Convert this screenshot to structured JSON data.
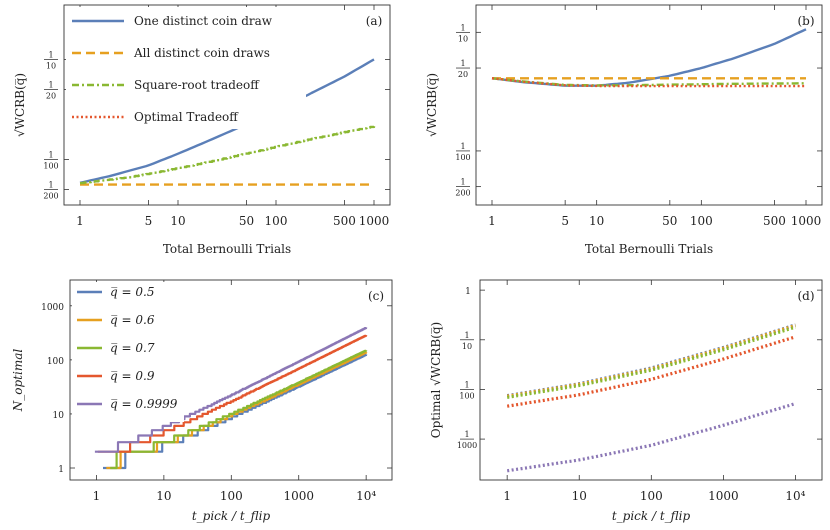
{
  "colors": {
    "blue": "#5b7fb8",
    "orange": "#e6a020",
    "green": "#8ab832",
    "red": "#e4572e",
    "purple": "#8b77b5"
  },
  "chart_data": [
    {
      "id": "a",
      "type": "line",
      "panel_label": "(a)",
      "xlabel": "Total Bernoulli Trials",
      "ylabel": "√WCRB(q̅)",
      "xscale": "log",
      "yscale": "log",
      "xlim": [
        1,
        1000
      ],
      "ylim": [
        0.0035,
        0.35
      ],
      "xticks": [
        1,
        5,
        10,
        50,
        100,
        500,
        1000
      ],
      "xtick_labels": [
        "1",
        "5",
        "10",
        "50",
        "100",
        "500",
        "1000"
      ],
      "yticks": [
        {
          "value": 0.1,
          "num": "1",
          "den": "10"
        },
        {
          "value": 0.05,
          "num": "1",
          "den": "20"
        },
        {
          "value": 0.01,
          "num": "1",
          "den": "100"
        },
        {
          "value": 0.005,
          "num": "1",
          "den": "200"
        }
      ],
      "legend": "top-left",
      "series": [
        {
          "name": "One distinct coin draw",
          "color": "#5b7fb8",
          "dash": "solid",
          "x": [
            1,
            2,
            5,
            10,
            20,
            50,
            100,
            200,
            500,
            1000
          ],
          "y": [
            0.00583,
            0.0068,
            0.0087,
            0.0114,
            0.0152,
            0.0225,
            0.031,
            0.043,
            0.0675,
            0.1
          ]
        },
        {
          "name": "All distinct coin draws",
          "color": "#e6a020",
          "dash": "dashed",
          "x": [
            1,
            1000
          ],
          "y": [
            0.0056,
            0.0056
          ]
        },
        {
          "name": "Square-root tradeoff",
          "color": "#8ab832",
          "dash": "dotdash",
          "x": [
            1,
            2,
            3,
            5,
            10,
            20,
            50,
            100,
            200,
            500,
            1000
          ],
          "y": [
            0.0058,
            0.0063,
            0.0066,
            0.0072,
            0.0082,
            0.0094,
            0.0115,
            0.0134,
            0.0156,
            0.0188,
            0.0215
          ]
        },
        {
          "name": "Optimal Tradeoff",
          "color": "#e4572e",
          "dash": "dotted",
          "x": [],
          "y": []
        }
      ]
    },
    {
      "id": "b",
      "type": "line",
      "panel_label": "(b)",
      "xlabel": "Total Bernoulli Trials",
      "ylabel": "√WCRB(q̅)",
      "xscale": "log",
      "yscale": "log",
      "xlim": [
        1,
        1000
      ],
      "ylim": [
        0.0035,
        0.17
      ],
      "xticks": [
        1,
        5,
        10,
        50,
        100,
        500,
        1000
      ],
      "xtick_labels": [
        "1",
        "5",
        "10",
        "50",
        "100",
        "500",
        "1000"
      ],
      "yticks": [
        {
          "value": 0.1,
          "num": "1",
          "den": "10"
        },
        {
          "value": 0.05,
          "num": "1",
          "den": "20"
        },
        {
          "value": 0.01,
          "num": "1",
          "den": "100"
        },
        {
          "value": 0.005,
          "num": "1",
          "den": "200"
        }
      ],
      "series": [
        {
          "name": "One distinct coin draw",
          "color": "#5b7fb8",
          "dash": "solid",
          "x": [
            1,
            2,
            5,
            10,
            20,
            50,
            100,
            200,
            500,
            1000
          ],
          "y": [
            0.041,
            0.038,
            0.0355,
            0.0355,
            0.0375,
            0.043,
            0.05,
            0.06,
            0.08,
            0.106
          ]
        },
        {
          "name": "All distinct coin draws",
          "color": "#e6a020",
          "dash": "dashed",
          "x": [
            1,
            1000
          ],
          "y": [
            0.041,
            0.041
          ]
        },
        {
          "name": "Square-root tradeoff",
          "color": "#8ab832",
          "dash": "dotdash",
          "x": [
            1,
            2,
            5,
            10,
            20,
            50,
            100,
            200,
            500,
            1000
          ],
          "y": [
            0.041,
            0.0385,
            0.036,
            0.0357,
            0.0358,
            0.0362,
            0.0365,
            0.0368,
            0.037,
            0.0372
          ]
        },
        {
          "name": "Optimal Tradeoff",
          "color": "#e4572e",
          "dash": "dotted",
          "x": [
            1,
            2,
            5,
            10,
            20,
            50,
            100,
            200,
            500,
            1000
          ],
          "y": [
            0.041,
            0.0383,
            0.0357,
            0.0353,
            0.0352,
            0.0352,
            0.0352,
            0.0352,
            0.0352,
            0.0352
          ]
        }
      ]
    },
    {
      "id": "c",
      "type": "line",
      "panel_label": "(c)",
      "xlabel": "t_pick / t_flip",
      "ylabel": "N_optimal",
      "xscale": "log",
      "yscale": "log",
      "xlim": [
        0.7,
        14000
      ],
      "ylim": [
        0.6,
        3000
      ],
      "xticks": [
        1,
        10,
        100,
        1000,
        10000
      ],
      "xtick_labels": [
        "1",
        "10",
        "100",
        "1000",
        "10⁴"
      ],
      "yticks": [
        1,
        10,
        100,
        1000
      ],
      "ytick_labels": [
        "1",
        "10",
        "100",
        "1000"
      ],
      "legend": "top-left",
      "series": [
        {
          "name": "q̅ = 0.5",
          "color": "#5b7fb8",
          "k": 0.5,
          "p": 0.6,
          "x0": 1.25
        },
        {
          "name": "q̅ = 0.6",
          "color": "#e6a020",
          "k": 0.55,
          "p": 0.6,
          "x0": 1.4
        },
        {
          "name": "q̅ = 0.7",
          "color": "#8ab832",
          "k": 0.6,
          "p": 0.6,
          "x0": 1.6
        },
        {
          "name": "q̅ = 0.9",
          "color": "#e4572e",
          "k": 0.95,
          "p": 0.62,
          "x0": 1.05
        },
        {
          "name": "q̅ = 0.9999",
          "color": "#8b77b5",
          "k": 1.2,
          "p": 0.63,
          "x0": 0.95
        }
      ]
    },
    {
      "id": "d",
      "type": "line",
      "panel_label": "(d)",
      "xlabel": "t_pick / t_flip",
      "ylabel": "Optimal √WCRB(q̅)",
      "xscale": "log",
      "yscale": "log",
      "xlim": [
        0.7,
        14000
      ],
      "ylim": [
        0.00015,
        1.6
      ],
      "xticks": [
        1,
        10,
        100,
        1000,
        10000
      ],
      "xtick_labels": [
        "1",
        "10",
        "100",
        "1000",
        "10⁴"
      ],
      "yticks": [
        {
          "value": 1,
          "num": "1",
          "den": ""
        },
        {
          "value": 0.1,
          "num": "1",
          "den": "10"
        },
        {
          "value": 0.01,
          "num": "1",
          "den": "100"
        },
        {
          "value": 0.001,
          "num": "1",
          "den": "1000"
        }
      ],
      "series": [
        {
          "name": "q̅ = 0.5",
          "color": "#5b7fb8",
          "x": [
            1,
            10,
            100,
            1000,
            10000
          ],
          "y": [
            0.0075,
            0.013,
            0.027,
            0.07,
            0.2
          ]
        },
        {
          "name": "q̅ = 0.6",
          "color": "#e6a020",
          "x": [
            1,
            10,
            100,
            1000,
            10000
          ],
          "y": [
            0.0073,
            0.0127,
            0.026,
            0.068,
            0.195
          ]
        },
        {
          "name": "q̅ = 0.7",
          "color": "#8ab832",
          "x": [
            1,
            10,
            100,
            1000,
            10000
          ],
          "y": [
            0.0069,
            0.012,
            0.0245,
            0.063,
            0.18
          ]
        },
        {
          "name": "q̅ = 0.9",
          "color": "#e4572e",
          "x": [
            1,
            10,
            100,
            1000,
            10000
          ],
          "y": [
            0.0046,
            0.0078,
            0.016,
            0.041,
            0.115
          ]
        },
        {
          "name": "q̅ = 0.9999",
          "color": "#8b77b5",
          "x": [
            1,
            10,
            100,
            1000,
            10000
          ],
          "y": [
            0.00023,
            0.00038,
            0.00075,
            0.0019,
            0.0052
          ]
        }
      ]
    }
  ]
}
